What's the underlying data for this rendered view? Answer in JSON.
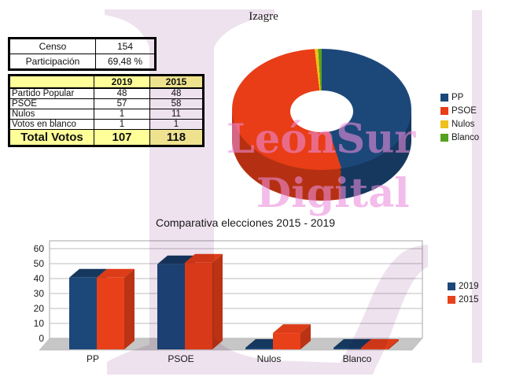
{
  "page": {
    "title": "Izagre",
    "background": "#ffffff"
  },
  "watermark": {
    "line1": "LeónSur",
    "line2": "Digital",
    "text_color": "#ec8ddb",
    "shape_color": "#e3d0e3"
  },
  "censo_table": {
    "rows": [
      [
        "Censo",
        "154"
      ],
      [
        "Participación",
        "69,48 %"
      ]
    ]
  },
  "results_table": {
    "headers": [
      "",
      "2019",
      "2015"
    ],
    "rows": [
      [
        "Partido Popular",
        "48",
        "48"
      ],
      [
        "PSOE",
        "57",
        "58"
      ],
      [
        "Nulos",
        "1",
        "11"
      ],
      [
        "Votos en blanco",
        "1",
        "1"
      ]
    ],
    "total_row": [
      "Total Votos",
      "107",
      "118"
    ],
    "highlight_bg": "#ffff99"
  },
  "chart_data": [
    {
      "type": "pie",
      "style": "3d-donut",
      "labels": [
        "PP",
        "PSOE",
        "Nulos",
        "Blanco"
      ],
      "values": [
        48,
        57,
        1,
        1
      ],
      "colors": [
        "#1c4879",
        "#e83d17",
        "#f0c01c",
        "#55a11f"
      ],
      "legend_position": "right"
    },
    {
      "type": "bar",
      "style": "3d",
      "title": "Comparativa elecciones 2015 - 2019",
      "categories": [
        "PP",
        "PSOE",
        "Nulos",
        "Blanco"
      ],
      "series": [
        {
          "name": "2019",
          "color": "#1c4879",
          "values": [
            48,
            57,
            1,
            1
          ]
        },
        {
          "name": "2015",
          "color": "#e84019",
          "values": [
            48,
            58,
            11,
            1
          ]
        }
      ],
      "ylim": [
        0,
        60
      ],
      "yticks": [
        0,
        10,
        20,
        30,
        40,
        50,
        60
      ],
      "grid": true,
      "legend_position": "right",
      "floor_color": "#c6c6c6"
    }
  ]
}
